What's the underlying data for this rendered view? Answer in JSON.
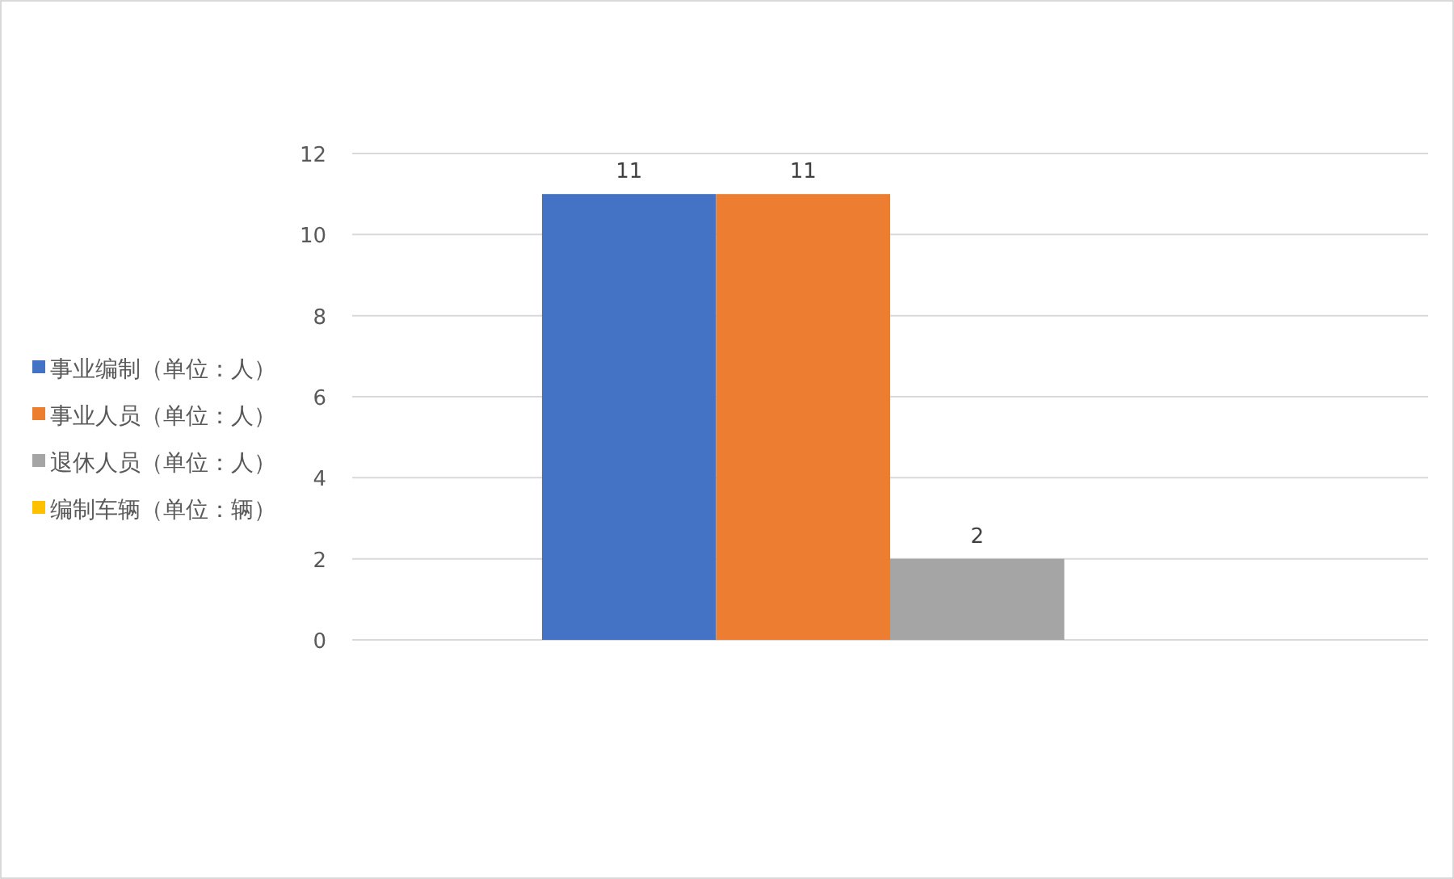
{
  "chart_data": {
    "type": "bar",
    "categories": [
      null
    ],
    "series": [
      {
        "name": "事业编制（单位：人）",
        "color": "#4472c4",
        "values": [
          11
        ],
        "value_labels": [
          "11"
        ]
      },
      {
        "name": "事业人员（单位：人）",
        "color": "#ed7d31",
        "values": [
          11
        ],
        "value_labels": [
          "11"
        ]
      },
      {
        "name": "退休人员（单位：人）",
        "color": "#a5a5a5",
        "values": [
          2
        ],
        "value_labels": [
          "2"
        ]
      },
      {
        "name": "编制车辆（单位：辆）",
        "color": "#ffc000",
        "values": [
          0
        ],
        "value_labels": [
          null
        ]
      }
    ],
    "ylim": [
      0,
      12
    ],
    "yticks": [
      0,
      2,
      4,
      6,
      8,
      10,
      12
    ],
    "grid": "y",
    "legend": "left"
  }
}
